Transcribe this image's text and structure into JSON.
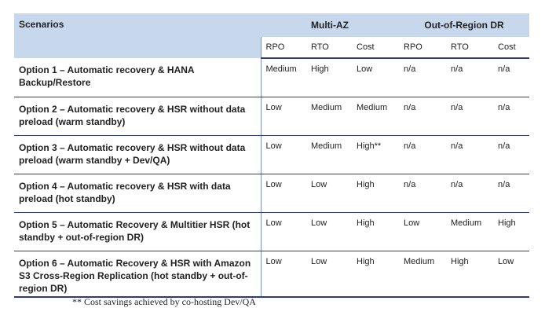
{
  "header": {
    "scenarios": "Scenarios",
    "multi_az": "Multi-AZ",
    "out_of_region": "Out-of-Region DR",
    "subcols": [
      "RPO",
      "RTO",
      "Cost",
      "RPO",
      "RTO",
      "Cost"
    ]
  },
  "rows": [
    {
      "label": "Option 1 – Automatic recovery & HANA Backup/Restore",
      "values": [
        "Medium",
        "High",
        "Low",
        "n/a",
        "n/a",
        "n/a"
      ]
    },
    {
      "label": "Option 2 – Automatic recovery & HSR without data preload (warm standby)",
      "values": [
        "Low",
        "Medium",
        "Medium",
        "n/a",
        "n/a",
        "n/a"
      ]
    },
    {
      "label": "Option 3 – Automatic recovery & HSR without data preload (warm standby + Dev/QA)",
      "values": [
        "Low",
        "Medium",
        "High**",
        "n/a",
        "n/a",
        "n/a"
      ]
    },
    {
      "label": "Option 4 – Automatic recovery & HSR with data preload (hot standby)",
      "values": [
        "Low",
        "Low",
        "High",
        "n/a",
        "n/a",
        "n/a"
      ]
    },
    {
      "label": "Option 5 – Automatic Recovery & Multitier HSR (hot standby + out-of-region DR)",
      "values": [
        "Low",
        "Low",
        "High",
        "Low",
        "Medium",
        "High"
      ]
    },
    {
      "label": "Option 6 – Automatic Recovery & HSR with Amazon S3 Cross-Region Replication (hot standby + out-of-region DR)",
      "values": [
        "Low",
        "Low",
        "High",
        "Medium",
        "High",
        "Low"
      ]
    }
  ],
  "footnote": "** Cost savings achieved by co-hosting Dev/QA"
}
